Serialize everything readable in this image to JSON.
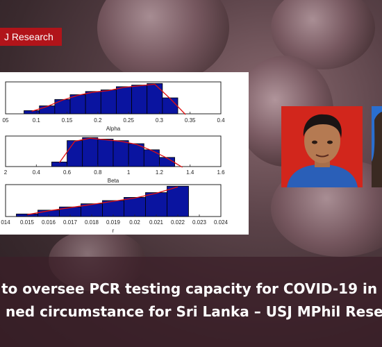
{
  "badge": {
    "label": "J Research"
  },
  "headline": {
    "line1": "to oversee PCR testing capacity for COVID-19 in",
    "line2": "ned circumstance for Sri Lanka – USJ MPhil Rese"
  },
  "chart_data": [
    {
      "type": "bar",
      "xlabel": "Alpha",
      "ticks": [
        "05",
        "0.1",
        "0.15",
        "0.2",
        "0.25",
        "0.3",
        "0.35",
        "0.4"
      ],
      "tick_values": [
        0.05,
        0.1,
        0.15,
        0.2,
        0.25,
        0.3,
        0.35,
        0.4
      ],
      "xlim": [
        0.05,
        0.4
      ],
      "bins": [
        0.08,
        0.105,
        0.13,
        0.155,
        0.18,
        0.205,
        0.23,
        0.255,
        0.28,
        0.305,
        0.33
      ],
      "values": [
        0.1,
        0.25,
        0.45,
        0.6,
        0.7,
        0.75,
        0.85,
        0.9,
        0.95,
        0.5,
        0.0
      ]
    },
    {
      "type": "bar",
      "xlabel": "Beta",
      "ticks": [
        "2",
        "0.4",
        "0.6",
        "0.8",
        "1",
        "1.2",
        "1.4",
        "1.6"
      ],
      "tick_values": [
        0.2,
        0.4,
        0.6,
        0.8,
        1.0,
        1.2,
        1.4,
        1.6
      ],
      "xlim": [
        0.2,
        1.6
      ],
      "bins": [
        0.5,
        0.6,
        0.7,
        0.8,
        0.9,
        1.0,
        1.1,
        1.2,
        1.3
      ],
      "values": [
        0.15,
        0.85,
        0.95,
        0.9,
        0.85,
        0.75,
        0.55,
        0.3,
        0.0
      ]
    },
    {
      "type": "bar",
      "xlabel": "r",
      "ticks": [
        "014",
        "0.015",
        "0.016",
        "0.017",
        "0.018",
        "0.019",
        "0.02",
        "0.021",
        "0.022",
        "0.023",
        "0.024"
      ],
      "tick_values": [
        0.014,
        0.015,
        0.016,
        0.017,
        0.018,
        0.019,
        0.02,
        0.021,
        0.022,
        0.023,
        0.024
      ],
      "xlim": [
        0.014,
        0.024
      ],
      "bins": [
        0.0145,
        0.0155,
        0.0165,
        0.0175,
        0.0185,
        0.0195,
        0.0205,
        0.0215
      ],
      "values": [
        0.08,
        0.2,
        0.3,
        0.4,
        0.5,
        0.6,
        0.75,
        0.95
      ]
    }
  ]
}
